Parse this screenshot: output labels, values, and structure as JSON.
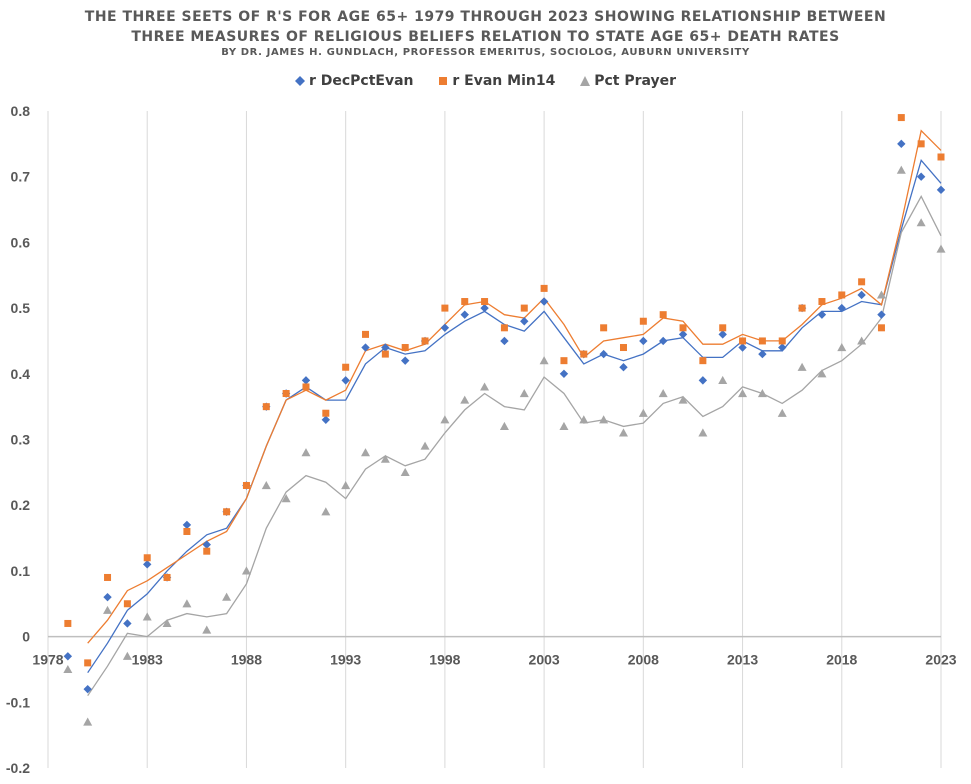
{
  "chart_data": {
    "type": "scatter",
    "title": "THE THREE SEETS OF R'S FOR AGE 65+ 1979 THROUGH 2023 SHOWING RELATIONSHIP BETWEEN",
    "title_line2": "THREE MEASURES OF RELIGIOUS BELIEFS RELATION TO STATE AGE 65+ DEATH RATES",
    "subtitle": "BY DR. JAMES H. GUNDLACH, PROFESSOR EMERITUS, SOCIOLOG, AUBURN UNIVERSITY",
    "xlabel": "",
    "ylabel": "",
    "xlim": [
      1978,
      2023
    ],
    "ylim": [
      -0.2,
      0.8
    ],
    "xticks": [
      1978,
      1983,
      1988,
      1993,
      1998,
      2003,
      2008,
      2013,
      2018,
      2023
    ],
    "xtick_labels": [
      "1978",
      "1983",
      "1988",
      "1993",
      "1998",
      "2003",
      "2008",
      "2013",
      "2018",
      "2023"
    ],
    "yticks": [
      -0.2,
      -0.1,
      0,
      0.1,
      0.2,
      0.3,
      0.4,
      0.5,
      0.6,
      0.7,
      0.8
    ],
    "ytick_labels": [
      "-0.2",
      "-0.1",
      "0",
      "0.1",
      "0.2",
      "0.3",
      "0.4",
      "0.5",
      "0.6",
      "0.7",
      "0.8"
    ],
    "grid": "vertical",
    "legend_position": "top",
    "series": [
      {
        "name": "r DecPctEvan",
        "color": "#4472c4",
        "marker": "diamond",
        "trendline": "2-period moving average",
        "x": [
          1979,
          1980,
          1981,
          1982,
          1983,
          1984,
          1985,
          1986,
          1987,
          1988,
          1989,
          1990,
          1991,
          1992,
          1993,
          1994,
          1995,
          1996,
          1997,
          1998,
          1999,
          2000,
          2001,
          2002,
          2003,
          2004,
          2005,
          2006,
          2007,
          2008,
          2009,
          2010,
          2011,
          2012,
          2013,
          2014,
          2015,
          2016,
          2017,
          2018,
          2019,
          2020,
          2021,
          2022,
          2023
        ],
        "values": [
          -0.03,
          -0.08,
          0.06,
          0.02,
          0.11,
          0.09,
          0.17,
          0.14,
          0.19,
          0.23,
          0.35,
          0.37,
          0.39,
          0.33,
          0.39,
          0.44,
          0.44,
          0.42,
          0.45,
          0.47,
          0.49,
          0.5,
          0.45,
          0.48,
          0.51,
          0.4,
          0.43,
          0.43,
          0.41,
          0.45,
          0.45,
          0.46,
          0.39,
          0.46,
          0.44,
          0.43,
          0.44,
          0.5,
          0.49,
          0.5,
          0.52,
          0.49,
          0.75,
          0.7,
          0.68
        ]
      },
      {
        "name": "r Evan Min14",
        "color": "#ed7d31",
        "marker": "square",
        "trendline": "2-period moving average",
        "x": [
          1979,
          1980,
          1981,
          1982,
          1983,
          1984,
          1985,
          1986,
          1987,
          1988,
          1989,
          1990,
          1991,
          1992,
          1993,
          1994,
          1995,
          1996,
          1997,
          1998,
          1999,
          2000,
          2001,
          2002,
          2003,
          2004,
          2005,
          2006,
          2007,
          2008,
          2009,
          2010,
          2011,
          2012,
          2013,
          2014,
          2015,
          2016,
          2017,
          2018,
          2019,
          2020,
          2021,
          2022,
          2023
        ],
        "values": [
          0.02,
          -0.04,
          0.09,
          0.05,
          0.12,
          0.09,
          0.16,
          0.13,
          0.19,
          0.23,
          0.35,
          0.37,
          0.38,
          0.34,
          0.41,
          0.46,
          0.43,
          0.44,
          0.45,
          0.5,
          0.51,
          0.51,
          0.47,
          0.5,
          0.53,
          0.42,
          0.43,
          0.47,
          0.44,
          0.48,
          0.49,
          0.47,
          0.42,
          0.47,
          0.45,
          0.45,
          0.45,
          0.5,
          0.51,
          0.52,
          0.54,
          0.47,
          0.79,
          0.75,
          0.73
        ]
      },
      {
        "name": "Pct Prayer",
        "color": "#a5a5a5",
        "marker": "triangle",
        "trendline": "2-period moving average",
        "x": [
          1979,
          1980,
          1981,
          1982,
          1983,
          1984,
          1985,
          1986,
          1987,
          1988,
          1989,
          1990,
          1991,
          1992,
          1993,
          1994,
          1995,
          1996,
          1997,
          1998,
          1999,
          2000,
          2001,
          2002,
          2003,
          2004,
          2005,
          2006,
          2007,
          2008,
          2009,
          2010,
          2011,
          2012,
          2013,
          2014,
          2015,
          2016,
          2017,
          2018,
          2019,
          2020,
          2021,
          2022,
          2023
        ],
        "values": [
          -0.05,
          -0.13,
          0.04,
          -0.03,
          0.03,
          0.02,
          0.05,
          0.01,
          0.06,
          0.1,
          0.23,
          0.21,
          0.28,
          0.19,
          0.23,
          0.28,
          0.27,
          0.25,
          0.29,
          0.33,
          0.36,
          0.38,
          0.32,
          0.37,
          0.42,
          0.32,
          0.33,
          0.33,
          0.31,
          0.34,
          0.37,
          0.36,
          0.31,
          0.39,
          0.37,
          0.37,
          0.34,
          0.41,
          0.4,
          0.44,
          0.45,
          0.52,
          0.71,
          0.63,
          0.59
        ]
      }
    ]
  }
}
